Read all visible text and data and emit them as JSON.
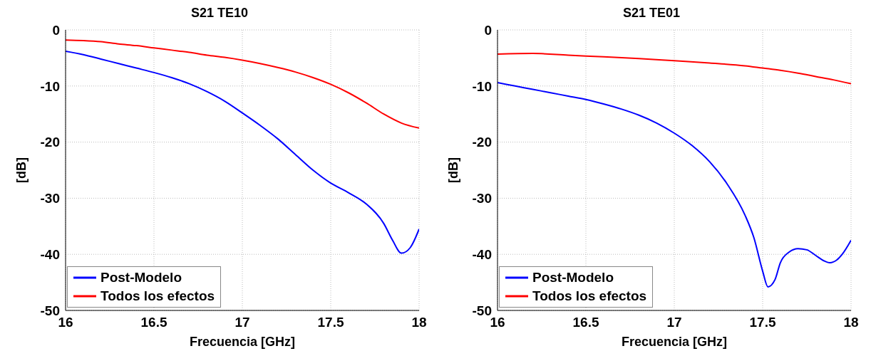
{
  "chart_data": [
    {
      "type": "line",
      "title": "S21 TE10",
      "xlabel": "Frecuencia [GHz]",
      "ylabel": "[dB]",
      "xlim": [
        16,
        18
      ],
      "xticks": [
        16,
        16.5,
        17,
        17.5,
        18
      ],
      "ylim": [
        -50,
        0
      ],
      "yticks": [
        -50,
        -40,
        -30,
        -20,
        -10,
        0
      ],
      "grid": true,
      "legend": "bottom left",
      "line_style": "solid",
      "series": [
        {
          "name": "Post-Modelo",
          "color": "#0000ff",
          "x": [
            16,
            16.1,
            16.2,
            16.3,
            16.4,
            16.5,
            16.6,
            16.7,
            16.8,
            16.9,
            17,
            17.1,
            17.2,
            17.3,
            17.4,
            17.5,
            17.6,
            17.7,
            17.8,
            17.85,
            17.9,
            17.95,
            18
          ],
          "values": [
            -3.8,
            -4.4,
            -5.2,
            -6.0,
            -6.8,
            -7.6,
            -8.5,
            -9.6,
            -11.0,
            -12.7,
            -14.8,
            -17.0,
            -19.4,
            -22.2,
            -25.0,
            -27.3,
            -29.0,
            -31.0,
            -34.5,
            -37.5,
            -39.8,
            -38.8,
            -35.5
          ]
        },
        {
          "name": "Todos los efectos",
          "color": "#ff0000",
          "x": [
            16,
            16.1,
            16.2,
            16.3,
            16.4,
            16.5,
            16.6,
            16.7,
            16.8,
            16.9,
            17,
            17.1,
            17.2,
            17.3,
            17.4,
            17.5,
            17.6,
            17.7,
            17.8,
            17.9,
            18
          ],
          "values": [
            -1.8,
            -1.9,
            -2.1,
            -2.5,
            -2.8,
            -3.2,
            -3.6,
            -4.0,
            -4.5,
            -4.9,
            -5.4,
            -6.0,
            -6.7,
            -7.5,
            -8.5,
            -9.7,
            -11.2,
            -13.0,
            -15.0,
            -16.6,
            -17.5
          ]
        }
      ]
    },
    {
      "type": "line",
      "title": "S21 TE01",
      "xlabel": "Frecuencia [GHz]",
      "ylabel": "[dB]",
      "xlim": [
        16,
        18
      ],
      "xticks": [
        16,
        16.5,
        17,
        17.5,
        18
      ],
      "ylim": [
        -50,
        0
      ],
      "yticks": [
        -50,
        -40,
        -30,
        -20,
        -10,
        0
      ],
      "grid": true,
      "legend": "bottom left",
      "line_style": "solid",
      "series": [
        {
          "name": "Post-Modelo",
          "color": "#0000ff",
          "x": [
            16,
            16.1,
            16.2,
            16.3,
            16.4,
            16.5,
            16.6,
            16.7,
            16.8,
            16.9,
            17,
            17.1,
            17.2,
            17.3,
            17.4,
            17.45,
            17.5,
            17.53,
            17.57,
            17.6,
            17.65,
            17.7,
            17.75,
            17.8,
            17.85,
            17.88,
            17.92,
            17.95,
            18
          ],
          "values": [
            -9.4,
            -10.0,
            -10.6,
            -11.2,
            -11.8,
            -12.4,
            -13.2,
            -14.1,
            -15.2,
            -16.6,
            -18.4,
            -20.6,
            -23.5,
            -27.5,
            -33.0,
            -37,
            -43,
            -45.8,
            -44.5,
            -41.5,
            -39.6,
            -39.0,
            -39.2,
            -40.2,
            -41.2,
            -41.5,
            -41,
            -40,
            -37.5
          ]
        },
        {
          "name": "Todos los efectos",
          "color": "#ff0000",
          "x": [
            16,
            16.2,
            16.4,
            16.6,
            16.8,
            17,
            17.2,
            17.4,
            17.5,
            17.6,
            17.7,
            17.8,
            17.9,
            18
          ],
          "values": [
            -4.3,
            -4.2,
            -4.5,
            -4.8,
            -5.1,
            -5.5,
            -5.9,
            -6.4,
            -6.8,
            -7.2,
            -7.7,
            -8.3,
            -8.9,
            -9.6
          ]
        }
      ]
    }
  ]
}
